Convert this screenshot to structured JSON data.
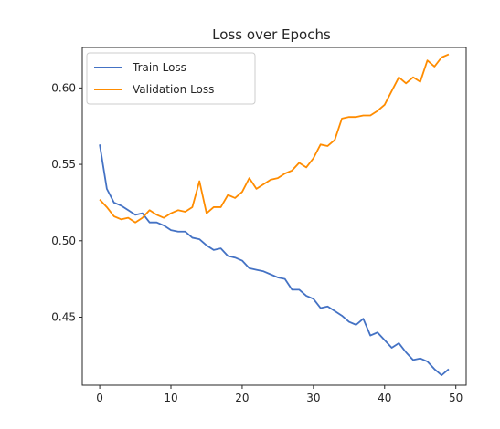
{
  "chart_data": {
    "type": "line",
    "title": "Loss over Epochs",
    "xlabel": "",
    "ylabel": "",
    "xlim": [
      -2.45,
      51.45
    ],
    "ylim": [
      0.4055,
      0.6265
    ],
    "xticks": [
      0,
      10,
      20,
      30,
      40,
      50
    ],
    "yticks": [
      0.45,
      0.5,
      0.55,
      0.6
    ],
    "ytick_labels": [
      "0.45",
      "0.50",
      "0.55",
      "0.60"
    ],
    "grid": false,
    "legend_position": "top-left",
    "x": [
      0,
      1,
      2,
      3,
      4,
      5,
      6,
      7,
      8,
      9,
      10,
      11,
      12,
      13,
      14,
      15,
      16,
      17,
      18,
      19,
      20,
      21,
      22,
      23,
      24,
      25,
      26,
      27,
      28,
      29,
      30,
      31,
      32,
      33,
      34,
      35,
      36,
      37,
      38,
      39,
      40,
      41,
      42,
      43,
      44,
      45,
      46,
      47,
      48,
      49
    ],
    "series": [
      {
        "name": "Train Loss",
        "color": "#4472c4",
        "values": [
          0.563,
          0.534,
          0.525,
          0.523,
          0.52,
          0.517,
          0.518,
          0.512,
          0.512,
          0.51,
          0.507,
          0.506,
          0.506,
          0.502,
          0.501,
          0.497,
          0.494,
          0.495,
          0.49,
          0.489,
          0.487,
          0.482,
          0.481,
          0.48,
          0.478,
          0.476,
          0.475,
          0.468,
          0.468,
          0.464,
          0.462,
          0.456,
          0.457,
          0.454,
          0.451,
          0.447,
          0.445,
          0.449,
          0.438,
          0.44,
          0.435,
          0.43,
          0.433,
          0.427,
          0.422,
          0.423,
          0.421,
          0.416,
          0.412,
          0.416
        ]
      },
      {
        "name": "Validation Loss",
        "color": "#ff8c00",
        "values": [
          0.527,
          0.522,
          0.516,
          0.514,
          0.515,
          0.512,
          0.515,
          0.52,
          0.517,
          0.515,
          0.518,
          0.52,
          0.519,
          0.522,
          0.539,
          0.518,
          0.522,
          0.522,
          0.53,
          0.528,
          0.532,
          0.541,
          0.534,
          0.537,
          0.54,
          0.541,
          0.544,
          0.546,
          0.551,
          0.548,
          0.554,
          0.563,
          0.562,
          0.566,
          0.58,
          0.581,
          0.581,
          0.582,
          0.582,
          0.585,
          0.589,
          0.598,
          0.607,
          0.603,
          0.607,
          0.604,
          0.618,
          0.614,
          0.62,
          0.622
        ]
      }
    ]
  }
}
